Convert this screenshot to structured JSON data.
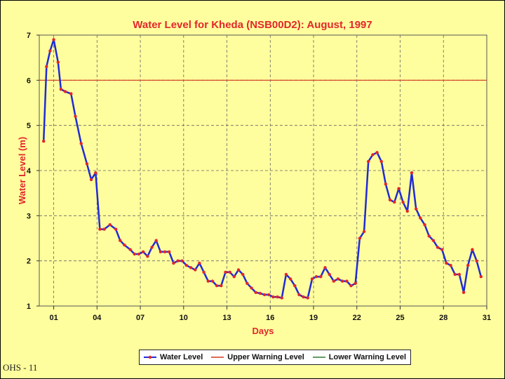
{
  "footer": {
    "text": "OHS - 11"
  },
  "colors": {
    "background": "#fffe9e",
    "plot_background": "#fffe9e",
    "water_line": "#1f2bd6",
    "water_marker": "#e2262b",
    "upper_warning": "#d03a1f",
    "lower_warning": "#2e7d32",
    "title": "#e2262b"
  },
  "chart_data": {
    "type": "line",
    "title": "Water Level for Kheda (NSB00D2): August, 1997",
    "xlabel": "Days",
    "ylabel": "Water Level (m)",
    "ylim": [
      1,
      7
    ],
    "yticks": [
      1,
      2,
      3,
      4,
      5,
      6,
      7
    ],
    "xlim": [
      0,
      31
    ],
    "xticks": [
      {
        "value": 1,
        "label": "01"
      },
      {
        "value": 4,
        "label": "04"
      },
      {
        "value": 7,
        "label": "07"
      },
      {
        "value": 10,
        "label": "10"
      },
      {
        "value": 13,
        "label": "13"
      },
      {
        "value": 16,
        "label": "16"
      },
      {
        "value": 19,
        "label": "19"
      },
      {
        "value": 22,
        "label": "22"
      },
      {
        "value": 25,
        "label": "25"
      },
      {
        "value": 28,
        "label": "28"
      },
      {
        "value": 31,
        "label": "31"
      }
    ],
    "grid": true,
    "legend_position": "bottom",
    "upper_warning_level": 6,
    "series": [
      {
        "name": "Water Level",
        "x": [
          0.3,
          0.5,
          0.75,
          1.0,
          1.3,
          1.5,
          1.8,
          2.2,
          2.5,
          2.9,
          3.3,
          3.6,
          3.9,
          4.2,
          4.5,
          4.9,
          5.3,
          5.6,
          5.9,
          6.3,
          6.6,
          6.9,
          7.2,
          7.5,
          7.8,
          8.1,
          8.4,
          8.7,
          9.0,
          9.3,
          9.6,
          9.9,
          10.2,
          10.5,
          10.8,
          11.1,
          11.4,
          11.7,
          12.0,
          12.3,
          12.6,
          12.9,
          13.2,
          13.5,
          13.8,
          14.1,
          14.4,
          14.7,
          15.0,
          15.3,
          15.6,
          15.9,
          16.2,
          16.5,
          16.8,
          17.1,
          17.4,
          17.7,
          18.0,
          18.3,
          18.6,
          18.9,
          19.2,
          19.5,
          19.8,
          20.1,
          20.4,
          20.7,
          21.0,
          21.3,
          21.6,
          21.9,
          22.2,
          22.5,
          22.8,
          23.1,
          23.4,
          23.7,
          24.0,
          24.3,
          24.6,
          24.9,
          25.2,
          25.5,
          25.8,
          26.1,
          26.4,
          26.7,
          27.0,
          27.3,
          27.6,
          27.9,
          28.2,
          28.5,
          28.8,
          29.1,
          29.4,
          29.7,
          30.0,
          30.3,
          30.6
        ],
        "y": [
          4.65,
          6.3,
          6.65,
          6.9,
          6.4,
          5.8,
          5.75,
          5.7,
          5.2,
          4.6,
          4.15,
          3.8,
          3.95,
          2.7,
          2.7,
          2.8,
          2.7,
          2.45,
          2.35,
          2.25,
          2.15,
          2.15,
          2.2,
          2.1,
          2.3,
          2.45,
          2.2,
          2.2,
          2.2,
          1.95,
          2.0,
          2.0,
          1.9,
          1.85,
          1.8,
          1.95,
          1.75,
          1.55,
          1.55,
          1.45,
          1.45,
          1.75,
          1.75,
          1.65,
          1.8,
          1.7,
          1.5,
          1.4,
          1.3,
          1.28,
          1.25,
          1.25,
          1.2,
          1.2,
          1.18,
          1.7,
          1.6,
          1.45,
          1.25,
          1.2,
          1.18,
          1.6,
          1.65,
          1.65,
          1.85,
          1.7,
          1.55,
          1.6,
          1.55,
          1.55,
          1.45,
          1.5,
          2.5,
          2.65,
          4.2,
          4.35,
          4.4,
          4.2,
          3.7,
          3.35,
          3.3,
          3.6,
          3.3,
          3.1,
          3.95,
          3.15,
          2.95,
          2.8,
          2.55,
          2.45,
          2.3,
          2.25,
          1.95,
          1.9,
          1.7,
          1.7,
          1.3,
          1.9,
          2.25,
          2.0,
          1.65
        ]
      }
    ],
    "legend": [
      "Water Level",
      "Upper Warning Level",
      "Lower Warning Level"
    ]
  }
}
